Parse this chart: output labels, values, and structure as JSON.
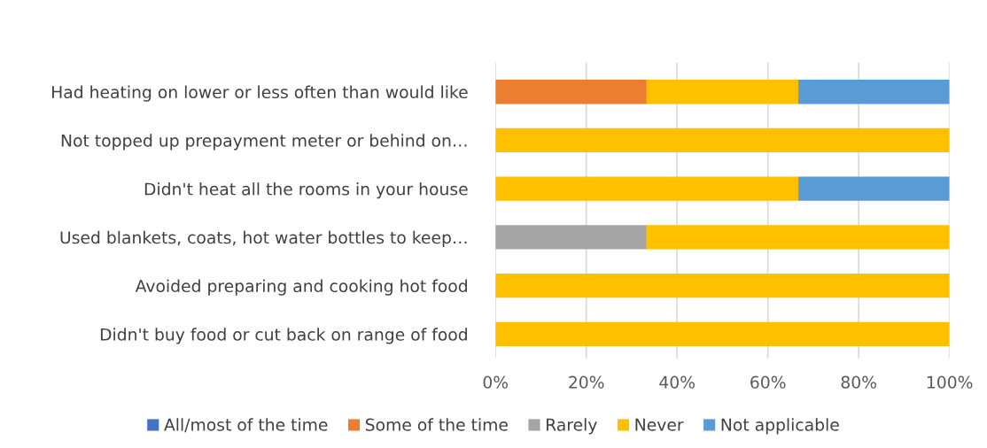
{
  "chart_data": {
    "type": "bar",
    "orientation": "horizontal",
    "stacked": true,
    "categories": [
      "Had heating on lower or less often than would like",
      "Not topped up prepayment meter or behind on…",
      "Didn't heat all the rooms in your house",
      "Used blankets, coats, hot water bottles to keep…",
      "Avoided preparing and cooking hot food",
      "Didn't buy food or cut back on range of food"
    ],
    "series": [
      {
        "name": "All/most of the time",
        "color": "#4472c4",
        "values": [
          0,
          0,
          0,
          0,
          0,
          0
        ]
      },
      {
        "name": "Some of the time",
        "color": "#ed7d31",
        "values": [
          33.3,
          0,
          0,
          0,
          0,
          0
        ]
      },
      {
        "name": "Rarely",
        "color": "#a5a5a5",
        "values": [
          0,
          0,
          0,
          33.3,
          0,
          0
        ]
      },
      {
        "name": "Never",
        "color": "#ffc000",
        "values": [
          33.4,
          100,
          66.7,
          66.7,
          100,
          100
        ]
      },
      {
        "name": "Not applicable",
        "color": "#5b9bd5",
        "values": [
          33.3,
          0,
          33.3,
          0,
          0,
          0
        ]
      }
    ],
    "xlim": [
      0,
      100
    ],
    "xticks": [
      {
        "value": 0,
        "label": "0%"
      },
      {
        "value": 20,
        "label": "20%"
      },
      {
        "value": 40,
        "label": "40%"
      },
      {
        "value": 60,
        "label": "60%"
      },
      {
        "value": 80,
        "label": "80%"
      },
      {
        "value": 100,
        "label": "100%"
      }
    ],
    "grid": "x",
    "legend": "bottom"
  }
}
